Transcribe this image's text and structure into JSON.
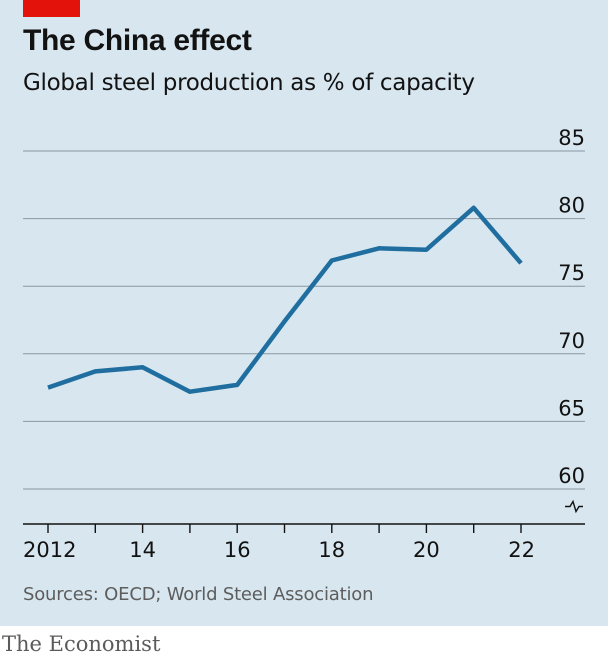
{
  "brand": {
    "accent": "#e3120b",
    "footer": "The Economist"
  },
  "chart_data": {
    "type": "line",
    "title": "The China effect",
    "subtitle": "Global steel production as % of capacity",
    "source": "Sources: OECD; World Steel Association",
    "x": [
      2012,
      2013,
      2014,
      2015,
      2016,
      2017,
      2018,
      2019,
      2020,
      2021,
      2022
    ],
    "x_tick_values": [
      2012,
      2014,
      2016,
      2018,
      2020,
      2022
    ],
    "x_tick_labels": [
      "2012",
      "14",
      "16",
      "18",
      "20",
      "22"
    ],
    "y_ticks": [
      60,
      65,
      70,
      75,
      80,
      85
    ],
    "ylim": [
      60,
      85
    ],
    "y_axis_break": true,
    "grid": true,
    "series": [
      {
        "values": [
          67.5,
          68.7,
          69.0,
          67.2,
          67.7,
          72.4,
          76.9,
          77.8,
          77.7,
          80.8,
          76.7
        ],
        "color": "#1f6e9f"
      }
    ],
    "colors": {
      "line": "#1f6e9f",
      "grid": "#8a97a0",
      "axis": "#121212",
      "background": "#d7e6ef"
    }
  }
}
